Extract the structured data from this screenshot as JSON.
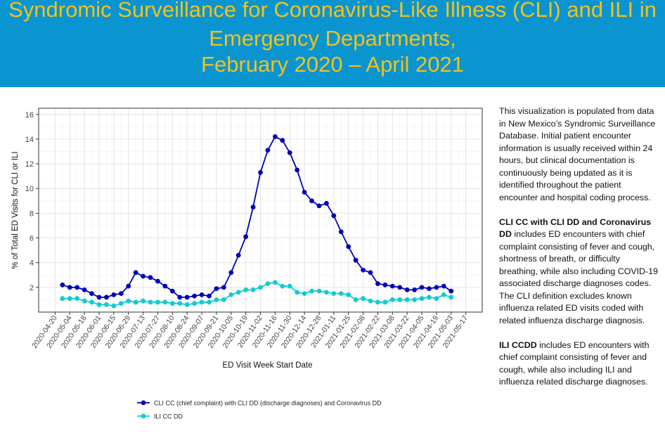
{
  "header": {
    "title_lines": [
      "Syndromic Surveillance for Coronavirus-Like Illness (CLI) and ILI in",
      "Emergency Departments,",
      "February 2020 – April 2021"
    ]
  },
  "colors": {
    "banner": "#0a95d0",
    "title": "#f2c21b",
    "cli": "#0000bb",
    "ili": "#11ccd0"
  },
  "sidebar": {
    "p1": "This visualization is populated from data in New Mexico’s Syndromic Surveillance Database. Initial patient encounter information is usually received within 24 hours, but clinical documentation is continuously being updated as it is identified throughout the patient encounter and hospital coding process.",
    "p2_bold": "CLI CC with CLI DD and Coronavirus DD",
    "p2_rest": " includes ED encounters with chief complaint consisting of fever and cough, shortness of breath, or difficulty breathing, while also including COVID-19 associated discharge diagnoses codes. The CLI definition excludes known influenza related ED visits coded with related influenza discharge diagnosis.",
    "p3_bold": "ILI CCDD",
    "p3_rest": " includes ED encounters with chief complaint consisting of fever and cough, while also including ILI and influenza related discharge diagnoses."
  },
  "chart_data": {
    "type": "line",
    "xlabel": "ED Visit Week Start Date",
    "ylabel": "% of Total ED Visits for CLI or ILI",
    "ylim": [
      0,
      16.5
    ],
    "yticks": [
      2,
      4,
      6,
      8,
      10,
      12,
      14,
      16
    ],
    "xlim": [
      "2020-04-20",
      "2021-05-17"
    ],
    "xtick_labels": [
      "2020-04-20",
      "2020-05-04",
      "2020-05-18",
      "2020-06-01",
      "2020-06-15",
      "2020-06-29",
      "2020-07-13",
      "2020-07-27",
      "2020-08-10",
      "2020-08-24",
      "2020-09-07",
      "2020-09-21",
      "2020-10-05",
      "2020-10-19",
      "2020-11-02",
      "2020-11-16",
      "2020-11-30",
      "2020-12-14",
      "2020-12-28",
      "2021-01-11",
      "2021-01-25",
      "2021-02-08",
      "2021-02-22",
      "2021-03-08",
      "2021-03-22",
      "2021-04-05",
      "2021-04-19",
      "2021-05-03",
      "2021-05-17"
    ],
    "grid": true,
    "legend_position": "bottom-left",
    "x": [
      "2020-04-27",
      "2020-05-04",
      "2020-05-11",
      "2020-05-18",
      "2020-05-25",
      "2020-06-01",
      "2020-06-08",
      "2020-06-15",
      "2020-06-22",
      "2020-06-29",
      "2020-07-06",
      "2020-07-13",
      "2020-07-20",
      "2020-07-27",
      "2020-08-03",
      "2020-08-10",
      "2020-08-17",
      "2020-08-24",
      "2020-08-31",
      "2020-09-07",
      "2020-09-14",
      "2020-09-21",
      "2020-09-28",
      "2020-10-05",
      "2020-10-12",
      "2020-10-19",
      "2020-10-26",
      "2020-11-02",
      "2020-11-09",
      "2020-11-16",
      "2020-11-23",
      "2020-11-30",
      "2020-12-07",
      "2020-12-14",
      "2020-12-21",
      "2020-12-28",
      "2021-01-04",
      "2021-01-11",
      "2021-01-18",
      "2021-01-25",
      "2021-02-01",
      "2021-02-08",
      "2021-02-15",
      "2021-02-22",
      "2021-03-01",
      "2021-03-08",
      "2021-03-15",
      "2021-03-22",
      "2021-03-29",
      "2021-04-05",
      "2021-04-12",
      "2021-04-19",
      "2021-04-26",
      "2021-05-03"
    ],
    "series": [
      {
        "name": "CLI CC (chief complaint) with CLI DD (discharge diagnoses) and Coronavirus DD",
        "values": [
          2.2,
          2.0,
          2.0,
          1.8,
          1.5,
          1.2,
          1.2,
          1.4,
          1.5,
          2.1,
          3.2,
          2.9,
          2.8,
          2.5,
          2.1,
          1.7,
          1.2,
          1.2,
          1.3,
          1.4,
          1.3,
          1.9,
          2.0,
          3.2,
          4.6,
          6.1,
          8.5,
          11.3,
          13.1,
          14.2,
          13.9,
          12.9,
          11.5,
          9.7,
          9.0,
          8.6,
          8.8,
          7.8,
          6.5,
          5.3,
          4.2,
          3.4,
          3.2,
          2.3,
          2.2,
          2.1,
          2.0,
          1.8,
          1.8,
          2.0,
          1.9,
          2.0,
          2.1,
          1.7
        ]
      },
      {
        "name": "ILI CC DD",
        "values": [
          1.1,
          1.1,
          1.1,
          0.9,
          0.8,
          0.6,
          0.6,
          0.5,
          0.7,
          0.9,
          0.8,
          0.9,
          0.8,
          0.8,
          0.8,
          0.7,
          0.7,
          0.6,
          0.7,
          0.8,
          0.8,
          1.0,
          1.0,
          1.4,
          1.6,
          1.8,
          1.8,
          2.0,
          2.3,
          2.4,
          2.1,
          2.1,
          1.6,
          1.5,
          1.7,
          1.7,
          1.6,
          1.5,
          1.5,
          1.4,
          1.0,
          1.1,
          0.9,
          0.8,
          0.8,
          1.0,
          1.0,
          1.0,
          1.0,
          1.1,
          1.2,
          1.1,
          1.4,
          1.2
        ]
      }
    ]
  }
}
